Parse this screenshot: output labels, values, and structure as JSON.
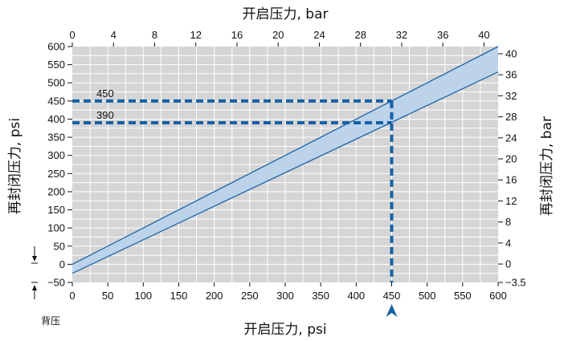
{
  "chart_data": {
    "type": "area",
    "x_bottom": {
      "label": "开启压力, psi",
      "range": [
        0,
        600
      ],
      "ticks": [
        0,
        50,
        100,
        150,
        200,
        250,
        300,
        350,
        400,
        450,
        500,
        550,
        600
      ]
    },
    "x_top": {
      "label": "开启压力, bar",
      "range": [
        0,
        41.37
      ],
      "ticks": [
        0,
        4,
        8,
        12,
        16,
        20,
        24,
        28,
        32,
        36,
        40
      ]
    },
    "y_left": {
      "label": "再封闭压力, psi",
      "range": [
        -50,
        600
      ],
      "ticks": [
        -50,
        0,
        50,
        100,
        150,
        200,
        250,
        300,
        350,
        400,
        450,
        500,
        550,
        600
      ],
      "tick_labels": [
        "−50",
        "0",
        "50",
        "100",
        "150",
        "200",
        "250",
        "300",
        "350",
        "400",
        "450",
        "500",
        "550",
        "600"
      ]
    },
    "y_right": {
      "label": "再封闭压力, bar",
      "range": [
        -3.5,
        41.37
      ],
      "ticks": [
        -3.5,
        0,
        4,
        8,
        12,
        16,
        20,
        24,
        28,
        32,
        36,
        40
      ],
      "tick_labels": [
        "−3.5",
        "0",
        "4",
        "8",
        "12",
        "16",
        "20",
        "24",
        "28",
        "32",
        "36",
        "40"
      ]
    },
    "grid": true,
    "band": {
      "upper": {
        "x": [
          0,
          600
        ],
        "y": [
          0,
          600
        ]
      },
      "lower": {
        "x": [
          0,
          600
        ],
        "y": [
          -25,
          530
        ]
      }
    },
    "annotations": [
      {
        "label": "450",
        "y": 450,
        "x_end": 450
      },
      {
        "label": "390",
        "y": 390,
        "x_end": 450
      }
    ],
    "guide_x": 450,
    "backpressure_note": "背压",
    "colors": {
      "plot_bg": "#d5d5d5",
      "grid": "#ffffff",
      "band_fill": "#bcd3ea",
      "band_line": "#1c64aa",
      "dash": "#1561a6"
    }
  }
}
